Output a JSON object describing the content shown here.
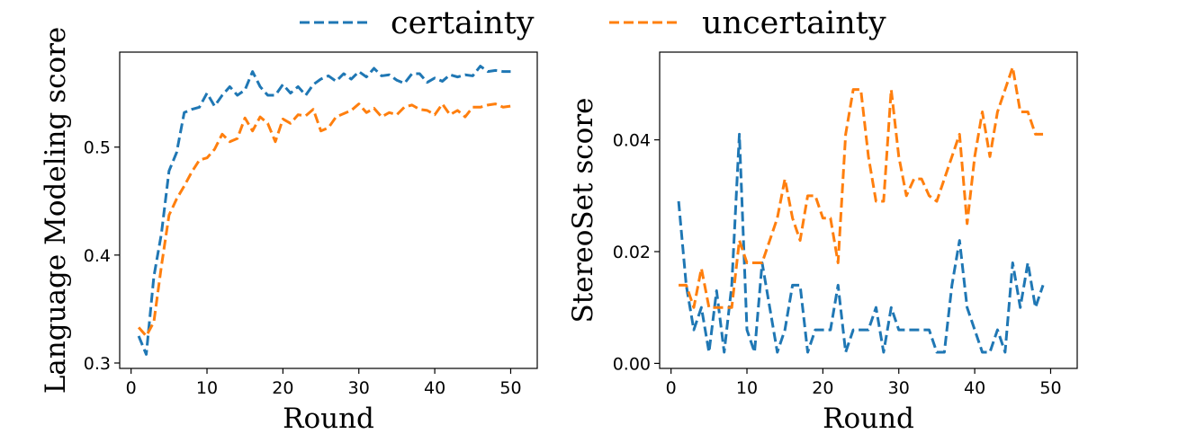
{
  "colors": {
    "certainty": "#1f77b4",
    "uncertainty": "#ff7f0e"
  },
  "legend": {
    "position": "top-center",
    "items": [
      {
        "label": "certainty",
        "color": "#1f77b4"
      },
      {
        "label": "uncertainty",
        "color": "#ff7f0e"
      }
    ]
  },
  "chart_data": [
    {
      "type": "line",
      "xlabel": "Round",
      "ylabel": "Language Modeling score",
      "xlim": [
        -1.5,
        53.5
      ],
      "ylim": [
        0.295,
        0.588
      ],
      "xticks": [
        0,
        10,
        20,
        30,
        40,
        50
      ],
      "xtick_labels": [
        "0",
        "10",
        "20",
        "30",
        "40",
        "50"
      ],
      "yticks": [
        0.3,
        0.4,
        0.5
      ],
      "ytick_labels": [
        "0.3",
        "0.4",
        "0.5"
      ],
      "x": [
        1,
        2,
        3,
        4,
        5,
        6,
        7,
        8,
        9,
        10,
        11,
        12,
        13,
        14,
        15,
        16,
        17,
        18,
        19,
        20,
        21,
        22,
        23,
        24,
        25,
        26,
        27,
        28,
        29,
        30,
        31,
        32,
        33,
        34,
        35,
        36,
        37,
        38,
        39,
        40,
        41,
        42,
        43,
        44,
        45,
        46,
        47,
        48,
        49,
        50
      ],
      "series": [
        {
          "name": "certainty",
          "values": [
            0.325,
            0.308,
            0.38,
            0.42,
            0.478,
            0.495,
            0.532,
            0.535,
            0.537,
            0.55,
            0.538,
            0.548,
            0.556,
            0.548,
            0.553,
            0.57,
            0.556,
            0.548,
            0.548,
            0.558,
            0.55,
            0.556,
            0.548,
            0.558,
            0.563,
            0.566,
            0.561,
            0.568,
            0.563,
            0.57,
            0.565,
            0.573,
            0.566,
            0.567,
            0.562,
            0.559,
            0.568,
            0.568,
            0.56,
            0.564,
            0.561,
            0.567,
            0.565,
            0.567,
            0.566,
            0.575,
            0.57,
            0.571,
            0.57,
            0.57
          ]
        },
        {
          "name": "uncertainty",
          "values": [
            0.333,
            0.325,
            0.338,
            0.39,
            0.437,
            0.452,
            0.464,
            0.477,
            0.488,
            0.49,
            0.498,
            0.512,
            0.505,
            0.508,
            0.527,
            0.515,
            0.528,
            0.522,
            0.505,
            0.526,
            0.522,
            0.53,
            0.529,
            0.535,
            0.515,
            0.518,
            0.528,
            0.531,
            0.534,
            0.54,
            0.532,
            0.536,
            0.528,
            0.532,
            0.53,
            0.537,
            0.539,
            0.535,
            0.534,
            0.53,
            0.54,
            0.53,
            0.534,
            0.528,
            0.537,
            0.537,
            0.539,
            0.54,
            0.537,
            0.538
          ]
        }
      ]
    },
    {
      "type": "line",
      "xlabel": "Round",
      "ylabel": "StereoSet score",
      "xlim": [
        -1.5,
        53.5
      ],
      "ylim": [
        -0.0009,
        0.0557
      ],
      "xticks": [
        0,
        10,
        20,
        30,
        40,
        50
      ],
      "xtick_labels": [
        "0",
        "10",
        "20",
        "30",
        "40",
        "50"
      ],
      "yticks": [
        0.0,
        0.02,
        0.04
      ],
      "ytick_labels": [
        "0.00",
        "0.02",
        "0.04"
      ],
      "x": [
        1,
        2,
        3,
        4,
        5,
        6,
        7,
        8,
        9,
        10,
        11,
        12,
        13,
        14,
        15,
        16,
        17,
        18,
        19,
        20,
        21,
        22,
        23,
        24,
        25,
        26,
        27,
        28,
        29,
        30,
        31,
        32,
        33,
        34,
        35,
        36,
        37,
        38,
        39,
        40,
        41,
        42,
        43,
        44,
        45,
        46,
        47,
        48,
        49
      ],
      "series": [
        {
          "name": "certainty",
          "values": [
            0.029,
            0.014,
            0.006,
            0.01,
            0.002,
            0.013,
            0.002,
            0.014,
            0.041,
            0.006,
            0.002,
            0.018,
            0.01,
            0.002,
            0.006,
            0.014,
            0.014,
            0.002,
            0.006,
            0.006,
            0.006,
            0.014,
            0.002,
            0.006,
            0.006,
            0.006,
            0.01,
            0.002,
            0.01,
            0.006,
            0.006,
            0.006,
            0.006,
            0.006,
            0.002,
            0.002,
            0.014,
            0.022,
            0.01,
            0.006,
            0.002,
            0.002,
            0.006,
            0.002,
            0.018,
            0.01,
            0.018,
            0.01,
            0.014
          ]
        },
        {
          "name": "uncertainty",
          "values": [
            0.014,
            0.014,
            0.01,
            0.017,
            0.01,
            0.01,
            0.01,
            0.01,
            0.022,
            0.018,
            0.018,
            0.018,
            0.022,
            0.026,
            0.033,
            0.026,
            0.022,
            0.03,
            0.03,
            0.026,
            0.026,
            0.018,
            0.041,
            0.049,
            0.049,
            0.037,
            0.029,
            0.029,
            0.049,
            0.037,
            0.03,
            0.033,
            0.033,
            0.03,
            0.029,
            0.033,
            0.037,
            0.041,
            0.025,
            0.037,
            0.045,
            0.037,
            0.045,
            0.049,
            0.053,
            0.045,
            0.045,
            0.041,
            0.041
          ]
        }
      ]
    }
  ]
}
